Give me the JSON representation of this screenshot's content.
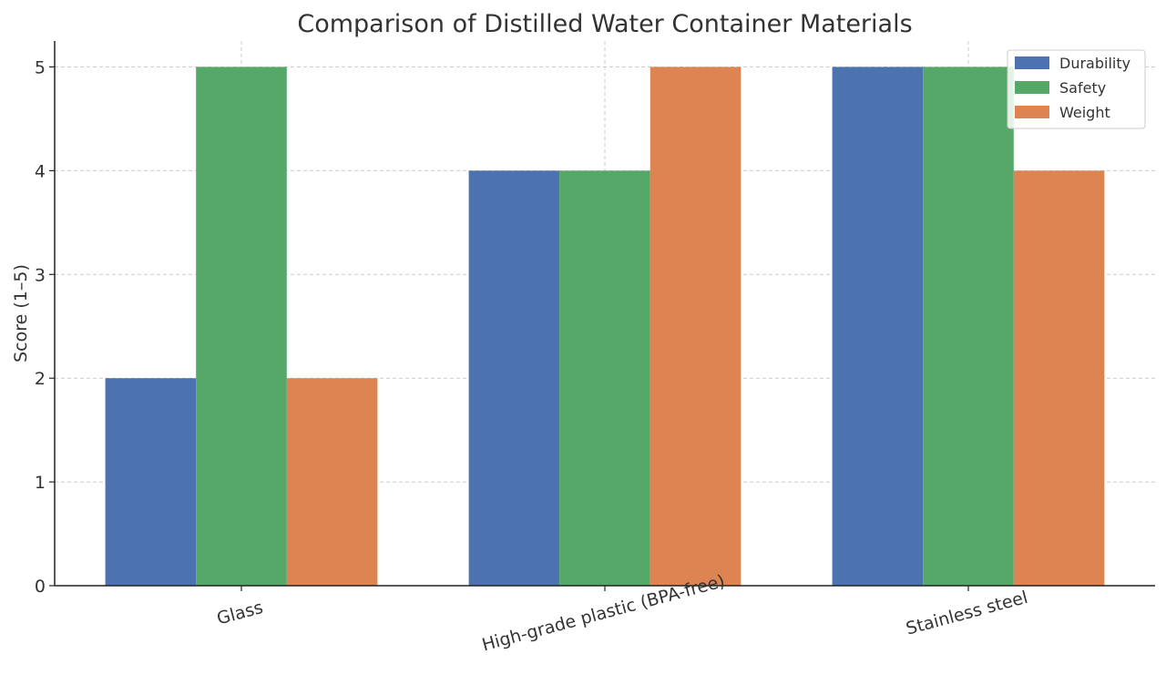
{
  "chart_data": {
    "type": "bar",
    "title": "Comparison of Distilled Water Container Materials",
    "xlabel": "",
    "ylabel": "Score (1–5)",
    "categories": [
      "Glass",
      "High-grade plastic (BPA-free)",
      "Stainless steel"
    ],
    "series": [
      {
        "name": "Durability",
        "values": [
          2,
          4,
          5
        ],
        "color": "#4c72b0"
      },
      {
        "name": "Safety",
        "values": [
          5,
          4,
          5
        ],
        "color": "#55a868"
      },
      {
        "name": "Weight",
        "values": [
          2,
          5,
          4
        ],
        "color": "#dd8452"
      }
    ],
    "ylim": [
      0,
      5.25
    ],
    "yticks": [
      0,
      1,
      2,
      3,
      4,
      5
    ],
    "grid": true,
    "legend": "top-right"
  }
}
